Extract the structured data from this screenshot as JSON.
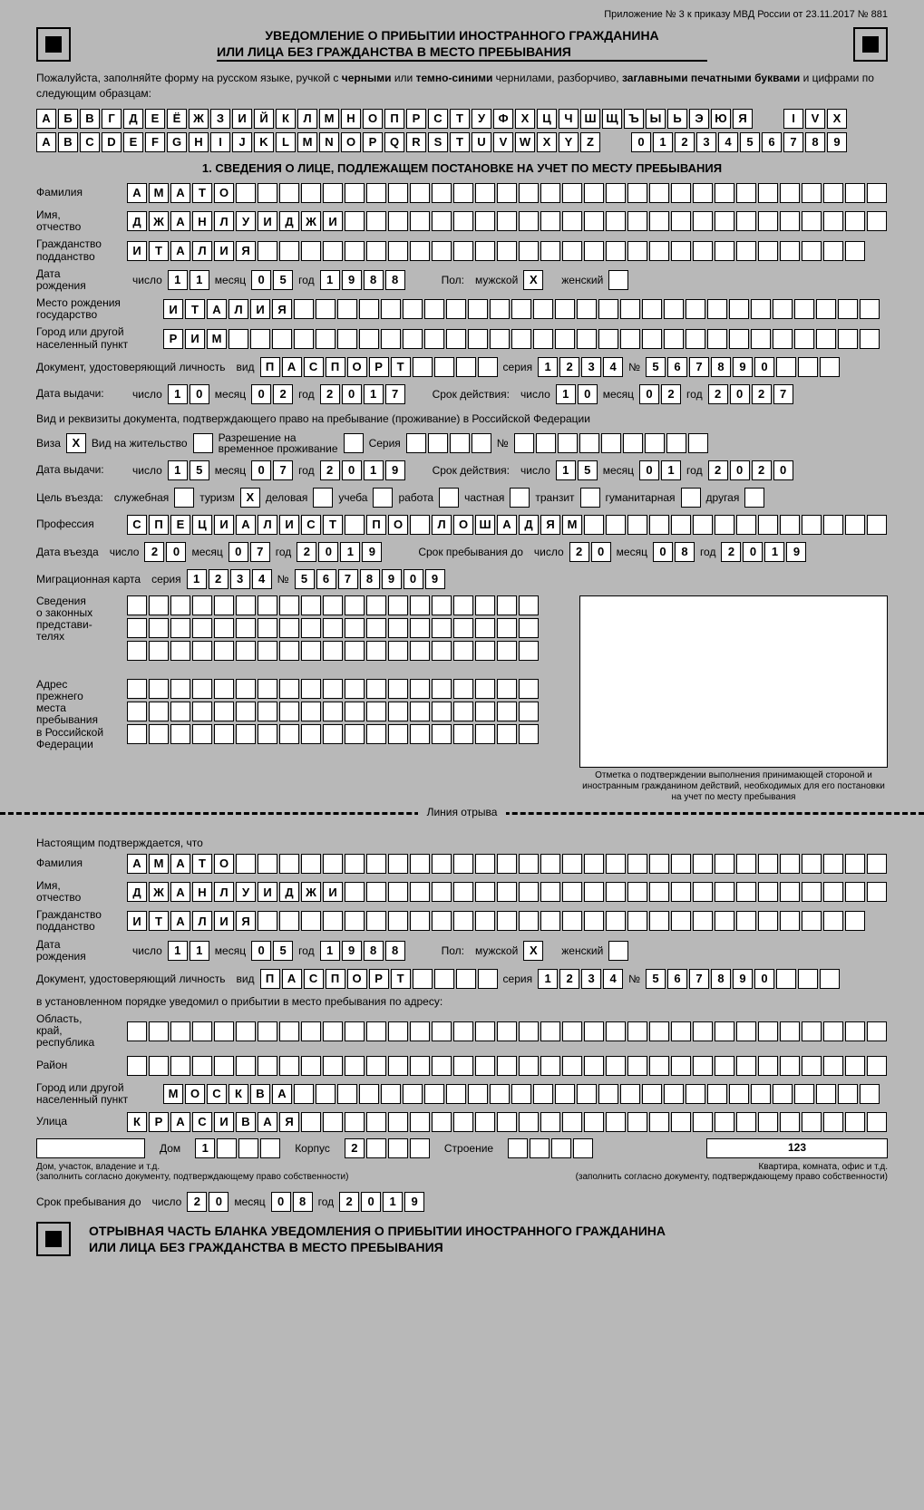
{
  "header": {
    "top_note": "Приложение № 3 к приказу МВД России от 23.11.2017 № 881",
    "title1": "УВЕДОМЛЕНИЕ О ПРИБЫТИИ ИНОСТРАННОГО ГРАЖДАНИНА",
    "title2": "ИЛИ ЛИЦА БЕЗ ГРАЖДАНСТВА В МЕСТО ПРЕБЫВАНИЯ"
  },
  "instructions": "Пожалуйста, заполняйте форму на русском языке, ручкой с <b>черными</b> или <b>темно-синими</b> чернилами, разборчиво, <b>заглавными печатными буквами</b> и цифрами по следующим образцам:",
  "samples": {
    "ru": [
      "А",
      "Б",
      "В",
      "Г",
      "Д",
      "Е",
      "Ё",
      "Ж",
      "З",
      "И",
      "Й",
      "К",
      "Л",
      "М",
      "Н",
      "О",
      "П",
      "Р",
      "С",
      "Т",
      "У",
      "Ф",
      "Х",
      "Ц",
      "Ч",
      "Ш",
      "Щ",
      "Ъ",
      "Ы",
      "Ь",
      "Э",
      "Ю",
      "Я"
    ],
    "roman": [
      "I",
      "V",
      "X"
    ],
    "lat": [
      "A",
      "B",
      "C",
      "D",
      "E",
      "F",
      "G",
      "H",
      "I",
      "J",
      "K",
      "L",
      "M",
      "N",
      "O",
      "P",
      "Q",
      "R",
      "S",
      "T",
      "U",
      "V",
      "W",
      "X",
      "Y",
      "Z"
    ],
    "num": [
      "0",
      "1",
      "2",
      "3",
      "4",
      "5",
      "6",
      "7",
      "8",
      "9"
    ]
  },
  "section1_head": "1. СВЕДЕНИЯ О ЛИЦЕ, ПОДЛЕЖАЩЕМ ПОСТАНОВКЕ НА УЧЕТ ПО МЕСТУ ПРЕБЫВАНИЯ",
  "labels": {
    "surname": "Фамилия",
    "name": "Имя,\nотчество",
    "citizenship": "Гражданство\nподданство",
    "dob": "Дата\nрождения",
    "day": "число",
    "month": "месяц",
    "year": "год",
    "sex": "Пол:",
    "male": "мужской",
    "female": "женский",
    "birthplace": "Место рождения\nгосударство",
    "city": "Город или другой\nнаселенный пункт",
    "doc": "Документ, удостоверяющий личность",
    "type": "вид",
    "series": "серия",
    "no": "№",
    "issue": "Дата выдачи:",
    "valid": "Срок действия:",
    "residence_doc": "Вид и реквизиты документа, подтверждающего право на пребывание (проживание) в Российской Федерации",
    "visa": "Виза",
    "residence_permit": "Вид на жительство",
    "temp_permit": "Разрешение на\nвременное проживание",
    "series2": "Серия",
    "purpose": "Цель въезда:",
    "p_official": "служебная",
    "p_tourism": "туризм",
    "p_business": "деловая",
    "p_study": "учеба",
    "p_work": "работа",
    "p_private": "частная",
    "p_transit": "транзит",
    "p_human": "гуманитарная",
    "p_other": "другая",
    "profession": "Профессия",
    "entry_date": "Дата въезда",
    "stay_until": "Срок пребывания до",
    "migr_card": "Миграционная карта",
    "legal_reps": "Сведения\nо законных\nпредстави-\nтелях",
    "prev_addr": "Адрес\nпрежнего\nместа\nпребывания\nв Российской\nФедерации",
    "photo_caption": "Отметка о подтверждении выполнения принимающей стороной и иностранным гражданином действий, необходимых для его постановки на учет по месту пребывания",
    "tearline": "Линия отрыва",
    "confirm": "Настоящим подтверждается, что",
    "notified": "в установленном порядке уведомил о прибытии в место пребывания по адресу:",
    "region": "Область,\nкрай,\nреспублика",
    "district": "Район",
    "street": "Улица",
    "house": "Дом",
    "building": "Корпус",
    "structure": "Строение",
    "house_note": "Дом, участок, владение и т.д.",
    "flat_note": "Квартира, комната, офис и т.д.",
    "fill_note": "(заполнить согласно документу, подтверждающему право собственности)",
    "stay_until2": "Срок пребывания до",
    "tear_title1": "ОТРЫВНАЯ ЧАСТЬ БЛАНКА УВЕДОМЛЕНИЯ О ПРИБЫТИИ ИНОСТРАННОГО ГРАЖДАНИНА",
    "tear_title2": "ИЛИ ЛИЦА БЕЗ ГРАЖДАНСТВА В МЕСТО ПРЕБЫВАНИЯ"
  },
  "data": {
    "surname": "АМАТО",
    "name": "ДЖАНЛУИДЖИ",
    "citizenship": "ИТАЛИЯ",
    "dob_d": "11",
    "dob_m": "05",
    "dob_y": "1988",
    "sex_m": "X",
    "sex_f": "",
    "birth_country": "ИТАЛИЯ",
    "birth_city": "РИМ",
    "doc_type": "ПАСПОРТ",
    "doc_series": "1234",
    "doc_no": "567890",
    "issue_d": "10",
    "issue_m": "02",
    "issue_y": "2017",
    "valid_d": "10",
    "valid_m": "02",
    "valid_y": "2027",
    "visa_x": "X",
    "resperm_x": "",
    "temp_x": "",
    "res_series": "",
    "res_no": "",
    "res_issue_d": "15",
    "res_issue_m": "07",
    "res_issue_y": "2019",
    "res_valid_d": "15",
    "res_valid_m": "01",
    "res_valid_y": "2020",
    "purpose_tourism": "X",
    "profession": "СПЕЦИАЛИСТ ПО ЛОШАДЯМ",
    "entry_d": "20",
    "entry_m": "07",
    "entry_y": "2019",
    "stay_d": "20",
    "stay_m": "08",
    "stay_y": "2019",
    "migr_series": "1234",
    "migr_no": "5678909",
    "addr_city": "МОСКВА",
    "addr_street": "КРАСИВАЯ",
    "house": "1",
    "korpus": "2",
    "flat": "123"
  }
}
